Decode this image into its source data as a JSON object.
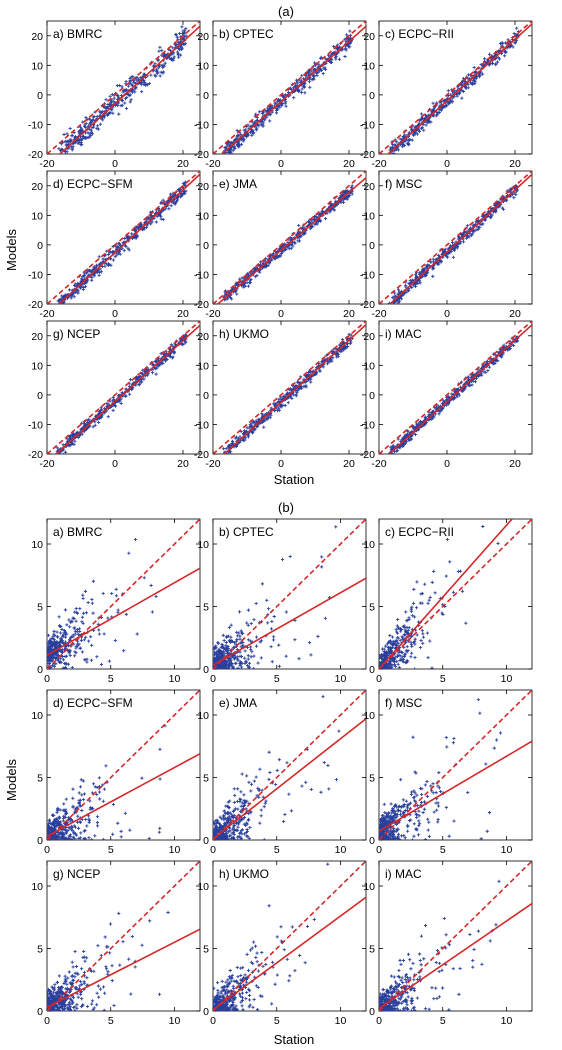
{
  "figure": {
    "labels": [
      "(a)",
      "(b)"
    ],
    "xlabel": "Station",
    "ylabel": "Models"
  },
  "colors": {
    "points": "#2a3f9c",
    "fit_line": "#d62728",
    "identity_line": "#d62728"
  },
  "chart_data": [
    {
      "type": "scatter",
      "group": "(a)",
      "xlim": [
        -20,
        25
      ],
      "ylim": [
        -20,
        25
      ],
      "xticks": [
        -20,
        0,
        20
      ],
      "yticks": [
        -20,
        -10,
        0,
        10,
        20
      ],
      "xlabel": "Station",
      "ylabel": "Models",
      "grid": false,
      "panels": [
        {
          "title": "a) BMRC",
          "fit": {
            "slope": 1.05,
            "intercept": -3.0
          },
          "spread": 2.0
        },
        {
          "title": "b) CPTEC",
          "fit": {
            "slope": 1.02,
            "intercept": -2.3
          },
          "spread": 1.3
        },
        {
          "title": "c) ECPC−RII",
          "fit": {
            "slope": 1.04,
            "intercept": -2.0
          },
          "spread": 1.2
        },
        {
          "title": "d) ECPC−SFM",
          "fit": {
            "slope": 1.06,
            "intercept": -2.6
          },
          "spread": 1.2
        },
        {
          "title": "e) JMA",
          "fit": {
            "slope": 0.98,
            "intercept": -1.8
          },
          "spread": 1.0
        },
        {
          "title": "f) MSC",
          "fit": {
            "slope": 1.05,
            "intercept": -2.4
          },
          "spread": 1.0
        },
        {
          "title": "g) NCEP",
          "fit": {
            "slope": 1.03,
            "intercept": -2.2
          },
          "spread": 1.0
        },
        {
          "title": "h) UKMO",
          "fit": {
            "slope": 1.05,
            "intercept": -2.5
          },
          "spread": 1.0
        },
        {
          "title": "i) MAC",
          "fit": {
            "slope": 1.04,
            "intercept": -2.3
          },
          "spread": 0.9
        }
      ]
    },
    {
      "type": "scatter",
      "group": "(b)",
      "xlim": [
        0,
        12
      ],
      "ylim": [
        0,
        12
      ],
      "xticks": [
        0,
        5,
        10
      ],
      "yticks": [
        0,
        5,
        10
      ],
      "xlabel": "Station",
      "ylabel": "Models",
      "grid": false,
      "panels": [
        {
          "title": "a) BMRC",
          "fit": {
            "slope": 0.58,
            "intercept": 1.1
          }
        },
        {
          "title": "b) CPTEC",
          "fit": {
            "slope": 0.58,
            "intercept": 0.3
          }
        },
        {
          "title": "c) ECPC−RII",
          "fit": {
            "slope": 1.15,
            "intercept": 0.0
          }
        },
        {
          "title": "d) ECPC−SFM",
          "fit": {
            "slope": 0.55,
            "intercept": 0.3
          }
        },
        {
          "title": "e) JMA",
          "fit": {
            "slope": 0.8,
            "intercept": 0.1
          }
        },
        {
          "title": "f) MSC",
          "fit": {
            "slope": 0.6,
            "intercept": 0.7
          }
        },
        {
          "title": "g) NCEP",
          "fit": {
            "slope": 0.52,
            "intercept": 0.3
          }
        },
        {
          "title": "h) UKMO",
          "fit": {
            "slope": 0.75,
            "intercept": 0.1
          }
        },
        {
          "title": "i) MAC",
          "fit": {
            "slope": 0.7,
            "intercept": 0.2
          }
        }
      ]
    }
  ]
}
